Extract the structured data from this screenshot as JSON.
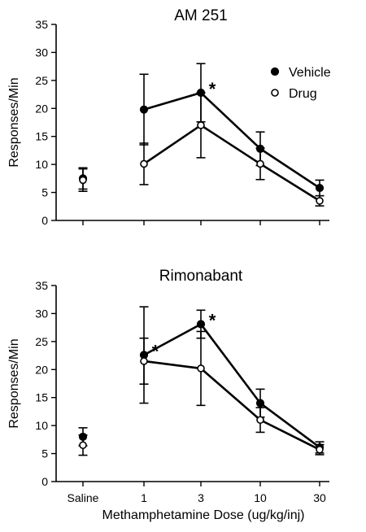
{
  "chart_data": [
    {
      "type": "line",
      "title": "AM 251",
      "ylabel": "Responses/Min",
      "xlabel": "",
      "ylim": [
        0,
        35
      ],
      "yticks": [
        0,
        5,
        10,
        15,
        20,
        25,
        30,
        35
      ],
      "categories": [
        "Saline",
        "1",
        "3",
        "10",
        "30"
      ],
      "show_x_tick_labels": false,
      "legend": {
        "placement": "top-right",
        "entries": [
          "Vehicle",
          "Drug"
        ]
      },
      "series": [
        {
          "name": "Vehicle",
          "marker": "filled-circle",
          "values": [
            7.5,
            19.8,
            22.8,
            12.8,
            5.8
          ],
          "errors": [
            1.9,
            6.3,
            5.2,
            3.0,
            1.4
          ],
          "connected_from": 1
        },
        {
          "name": "Drug",
          "marker": "open-circle",
          "values": [
            7.2,
            10.1,
            17.0,
            10.1,
            3.5
          ],
          "errors": [
            2.0,
            3.7,
            5.8,
            2.8,
            0.9
          ],
          "connected_from": 1
        }
      ],
      "annotations": [
        {
          "text": "*",
          "category": "3",
          "y": 22.8
        }
      ]
    },
    {
      "type": "line",
      "title": "Rimonabant",
      "ylabel": "Responses/Min",
      "xlabel": "Methamphetamine Dose (ug/kg/inj)",
      "ylim": [
        0,
        35
      ],
      "yticks": [
        0,
        5,
        10,
        15,
        20,
        25,
        30,
        35
      ],
      "categories": [
        "Saline",
        "1",
        "3",
        "10",
        "30"
      ],
      "show_x_tick_labels": true,
      "series": [
        {
          "name": "Vehicle",
          "marker": "filled-circle",
          "values": [
            8.0,
            22.6,
            28.1,
            14.0,
            6.1
          ],
          "errors": [
            1.6,
            8.6,
            2.5,
            2.5,
            1.0
          ],
          "connected_from": 1
        },
        {
          "name": "Drug",
          "marker": "open-circle",
          "values": [
            6.5,
            21.5,
            20.2,
            11.0,
            5.7
          ],
          "errors": [
            1.8,
            4.1,
            6.6,
            2.2,
            0.9
          ],
          "connected_from": 1
        }
      ],
      "annotations": [
        {
          "text": "*",
          "category": "1",
          "y": 22.6
        },
        {
          "text": "*",
          "category": "3",
          "y": 28.1
        }
      ]
    }
  ]
}
